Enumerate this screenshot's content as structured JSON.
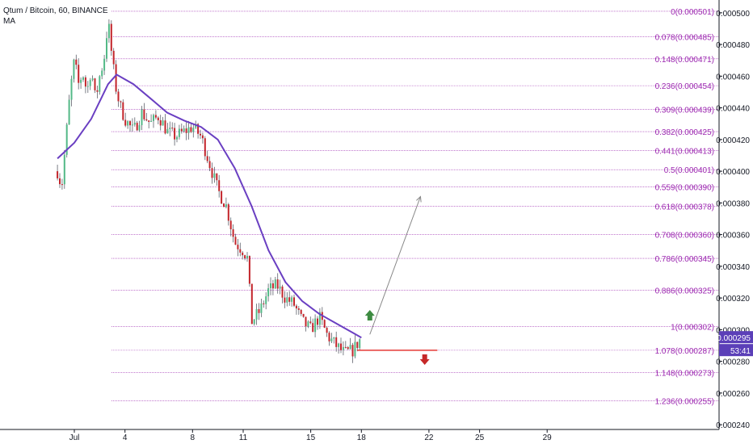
{
  "header": {
    "symbol": "Qtum / Bitcoin, 60, BINANCE",
    "indicator": "MA"
  },
  "colors": {
    "up": "#53b987",
    "down": "#c3252b",
    "wick": "#5d606b",
    "ma": "#6a3fc2",
    "fib": "#9c27b0",
    "stop": "#e53935",
    "arrow_up": "#3d8b41",
    "arrow_down": "#c62828",
    "grid": "#e0e3eb"
  },
  "price_axis": {
    "ticks": [
      "0.000500",
      "0.000480",
      "0.000460",
      "0.000440",
      "0.000420",
      "0.000400",
      "0.000380",
      "0.000360",
      "0.000340",
      "0.000320",
      "0.000300",
      "0.000280",
      "0.000260",
      "0.000240"
    ],
    "last_price": "0.000295",
    "countdown": "53:41"
  },
  "time_axis": {
    "ticks": [
      "Jul",
      "4",
      "8",
      "11",
      "15",
      "18",
      "22",
      "25",
      "29"
    ]
  },
  "chart_data": {
    "type": "candlestick",
    "ylim": [
      0.000237,
      0.000504
    ],
    "fib_levels": [
      {
        "ratio": "0",
        "price": "0.000501"
      },
      {
        "ratio": "0.078",
        "price": "0.000485"
      },
      {
        "ratio": "0.148",
        "price": "0.000471"
      },
      {
        "ratio": "0.236",
        "price": "0.000454"
      },
      {
        "ratio": "0.309",
        "price": "0.000439"
      },
      {
        "ratio": "0.382",
        "price": "0.000425"
      },
      {
        "ratio": "0.441",
        "price": "0.000413"
      },
      {
        "ratio": "0.5",
        "price": "0.000401"
      },
      {
        "ratio": "0.559",
        "price": "0.000390"
      },
      {
        "ratio": "0.618",
        "price": "0.000378"
      },
      {
        "ratio": "0.708",
        "price": "0.000360"
      },
      {
        "ratio": "0.786",
        "price": "0.000345"
      },
      {
        "ratio": "0.886",
        "price": "0.000325"
      },
      {
        "ratio": "1",
        "price": "0.000302"
      },
      {
        "ratio": "1.078",
        "price": "0.000287"
      },
      {
        "ratio": "1.148",
        "price": "0.000273"
      },
      {
        "ratio": "1.236",
        "price": "0.000255"
      }
    ],
    "price_path": [
      [
        "Jun 30 00:00",
        0.0004
      ],
      [
        "Jun 30 06:00",
        0.00039
      ],
      [
        "Jun 30 12:00",
        0.00042
      ],
      [
        "Jun 30 18:00",
        0.00045
      ],
      [
        "Jul 1 00:00",
        0.00047
      ],
      [
        "Jul 1 06:00",
        0.000455
      ],
      [
        "Jul 1 12:00",
        0.000462
      ],
      [
        "Jul 1 18:00",
        0.00045
      ],
      [
        "Jul 2 00:00",
        0.000465
      ],
      [
        "Jul 2 06:00",
        0.000445
      ],
      [
        "Jul 2 12:00",
        0.00046
      ],
      [
        "Jul 2 18:00",
        0.00047
      ],
      [
        "Jul 3 00:00",
        0.000495
      ],
      [
        "Jul 3 06:00",
        0.00047
      ],
      [
        "Jul 3 12:00",
        0.00045
      ],
      [
        "Jul 3 18:00",
        0.00044
      ],
      [
        "Jul 4 00:00",
        0.000433
      ],
      [
        "Jul 4 12:00",
        0.000425
      ],
      [
        "Jul 5 00:00",
        0.000437
      ],
      [
        "Jul 5 12:00",
        0.00043
      ],
      [
        "Jul 6 00:00",
        0.000435
      ],
      [
        "Jul 6 12:00",
        0.000425
      ],
      [
        "Jul 7 00:00",
        0.000422
      ],
      [
        "Jul 7 12:00",
        0.000425
      ],
      [
        "Jul 8 00:00",
        0.000428
      ],
      [
        "Jul 8 12:00",
        0.000422
      ],
      [
        "Jul 9 00:00",
        0.000405
      ],
      [
        "Jul 9 12:00",
        0.000388
      ],
      [
        "Jul 10 00:00",
        0.000378
      ],
      [
        "Jul 10 12:00",
        0.000355
      ],
      [
        "Jul 11 00:00",
        0.00035
      ],
      [
        "Jul 11 06:00",
        0.000345
      ],
      [
        "Jul 11 12:00",
        0.000305
      ],
      [
        "Jul 12 00:00",
        0.000312
      ],
      [
        "Jul 12 12:00",
        0.000325
      ],
      [
        "Jul 13 00:00",
        0.000328
      ],
      [
        "Jul 13 12:00",
        0.00032
      ],
      [
        "Jul 14 00:00",
        0.000316
      ],
      [
        "Jul 14 12:00",
        0.000305
      ],
      [
        "Jul 15 00:00",
        0.0003
      ],
      [
        "Jul 15 12:00",
        0.000308
      ],
      [
        "Jul 16 00:00",
        0.000296
      ],
      [
        "Jul 16 12:00",
        0.00029
      ],
      [
        "Jul 17 00:00",
        0.000285
      ],
      [
        "Jul 17 12:00",
        0.000287
      ],
      [
        "Jul 18 00:00",
        0.000295
      ]
    ],
    "moving_average": [
      [
        "Jun 30 00:00",
        0.000408
      ],
      [
        "Jul 1 00:00",
        0.000418
      ],
      [
        "Jul 2 00:00",
        0.000433
      ],
      [
        "Jul 3 00:00",
        0.000455
      ],
      [
        "Jul 3 12:00",
        0.000461
      ],
      [
        "Jul 4 12:00",
        0.000455
      ],
      [
        "Jul 5 12:00",
        0.000446
      ],
      [
        "Jul 6 12:00",
        0.000437
      ],
      [
        "Jul 7 12:00",
        0.000432
      ],
      [
        "Jul 8 12:00",
        0.000428
      ],
      [
        "Jul 9 12:00",
        0.00042
      ],
      [
        "Jul 10 12:00",
        0.000402
      ],
      [
        "Jul 11 12:00",
        0.000378
      ],
      [
        "Jul 12 12:00",
        0.00035
      ],
      [
        "Jul 13 12:00",
        0.00033
      ],
      [
        "Jul 14 12:00",
        0.000318
      ],
      [
        "Jul 15 12:00",
        0.00031
      ],
      [
        "Jul 16 12:00",
        0.000304
      ],
      [
        "Jul 17 12:00",
        0.000298
      ],
      [
        "Jul 18 00:00",
        0.000295
      ]
    ],
    "stop_level": 0.000287,
    "projection": [
      [
        "Jul 18 12:00",
        0.000297
      ],
      [
        "Jul 21 12:00",
        0.000384
      ]
    ],
    "projection_end": "Jul 22 12:00"
  }
}
